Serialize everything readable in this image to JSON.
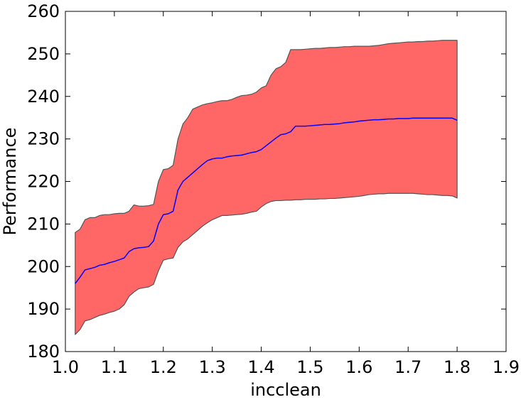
{
  "chart_data": {
    "type": "area",
    "xlabel": "incclean",
    "ylabel": "Performance",
    "xlim": [
      1.0,
      1.9
    ],
    "ylim": [
      180,
      260
    ],
    "x_ticks": [
      1.0,
      1.1,
      1.2,
      1.3,
      1.4,
      1.5,
      1.6,
      1.7,
      1.8,
      1.9
    ],
    "x_tick_labels": [
      "1.0",
      "1.1",
      "1.2",
      "1.3",
      "1.4",
      "1.5",
      "1.6",
      "1.7",
      "1.8",
      "1.9"
    ],
    "y_ticks": [
      180,
      190,
      200,
      210,
      220,
      230,
      240,
      250,
      260
    ],
    "y_tick_labels": [
      "180",
      "190",
      "200",
      "210",
      "220",
      "230",
      "240",
      "250",
      "260"
    ],
    "grid": false,
    "colors": {
      "band_fill": "#ff6666",
      "band_edge": "#555555",
      "mean_line": "#0000ff",
      "axes": "#000000"
    },
    "x": [
      1.02,
      1.03,
      1.04,
      1.05,
      1.06,
      1.07,
      1.08,
      1.09,
      1.1,
      1.11,
      1.12,
      1.13,
      1.14,
      1.15,
      1.16,
      1.17,
      1.18,
      1.19,
      1.2,
      1.21,
      1.22,
      1.23,
      1.24,
      1.25,
      1.26,
      1.27,
      1.28,
      1.29,
      1.3,
      1.31,
      1.32,
      1.33,
      1.34,
      1.35,
      1.36,
      1.37,
      1.38,
      1.39,
      1.4,
      1.41,
      1.42,
      1.43,
      1.44,
      1.45,
      1.46,
      1.47,
      1.48,
      1.49,
      1.5,
      1.51,
      1.52,
      1.53,
      1.54,
      1.55,
      1.56,
      1.57,
      1.58,
      1.59,
      1.6,
      1.61,
      1.62,
      1.63,
      1.64,
      1.65,
      1.66,
      1.67,
      1.68,
      1.69,
      1.7,
      1.71,
      1.72,
      1.73,
      1.74,
      1.75,
      1.76,
      1.77,
      1.78,
      1.79,
      1.8
    ],
    "series": [
      {
        "role": "mean",
        "values": [
          196.0,
          197.5,
          199.2,
          199.5,
          199.8,
          200.3,
          200.5,
          200.9,
          201.2,
          201.6,
          202.0,
          203.5,
          204.2,
          204.4,
          204.5,
          204.7,
          206.0,
          210.0,
          212.2,
          212.4,
          213.0,
          218.0,
          220.0,
          221.0,
          222.0,
          223.0,
          224.0,
          224.9,
          225.3,
          225.5,
          225.5,
          225.8,
          226.0,
          226.1,
          226.2,
          226.5,
          226.8,
          227.0,
          227.5,
          228.4,
          229.3,
          230.2,
          231.0,
          231.2,
          231.7,
          233.0,
          233.0,
          233.0,
          233.1,
          233.2,
          233.3,
          233.4,
          233.4,
          233.5,
          233.6,
          233.8,
          233.9,
          234.0,
          234.2,
          234.3,
          234.4,
          234.5,
          234.5,
          234.6,
          234.7,
          234.7,
          234.8,
          234.8,
          234.8,
          234.9,
          234.9,
          234.9,
          234.9,
          234.9,
          234.9,
          234.9,
          234.9,
          234.9,
          234.4
        ]
      },
      {
        "role": "upper",
        "values": [
          208.0,
          208.8,
          211.0,
          211.5,
          211.5,
          212.0,
          212.2,
          212.2,
          212.4,
          212.5,
          212.5,
          213.0,
          214.5,
          214.2,
          214.2,
          214.3,
          214.6,
          220.0,
          222.8,
          223.0,
          223.8,
          230.0,
          233.5,
          235.0,
          237.0,
          237.5,
          238.0,
          238.3,
          238.5,
          238.8,
          239.0,
          239.0,
          239.3,
          239.8,
          240.2,
          240.3,
          240.5,
          241.0,
          242.0,
          242.5,
          245.0,
          246.5,
          247.0,
          248.0,
          251.0,
          251.0,
          251.0,
          251.1,
          251.2,
          251.3,
          251.3,
          251.4,
          251.5,
          251.5,
          251.6,
          251.7,
          251.7,
          251.8,
          251.8,
          251.8,
          251.8,
          251.9,
          252.0,
          252.2,
          252.4,
          252.5,
          252.6,
          252.7,
          252.8,
          252.8,
          252.9,
          252.9,
          253.0,
          253.0,
          253.1,
          253.2,
          253.2,
          253.2,
          253.2
        ]
      },
      {
        "role": "lower",
        "values": [
          184.0,
          185.2,
          187.2,
          187.5,
          188.0,
          188.5,
          188.8,
          189.2,
          189.5,
          190.0,
          191.0,
          193.0,
          194.0,
          194.8,
          195.0,
          195.2,
          195.8,
          199.0,
          201.5,
          201.8,
          202.0,
          204.5,
          205.8,
          206.5,
          207.5,
          208.5,
          209.5,
          210.3,
          211.0,
          211.5,
          212.0,
          212.0,
          212.1,
          212.2,
          212.3,
          212.5,
          212.8,
          213.0,
          214.0,
          214.8,
          215.3,
          215.5,
          215.5,
          215.6,
          215.6,
          215.7,
          215.7,
          215.8,
          215.8,
          215.8,
          215.9,
          215.9,
          216.0,
          216.0,
          216.1,
          216.2,
          216.3,
          216.4,
          216.5,
          216.7,
          216.9,
          217.0,
          217.1,
          217.1,
          217.2,
          217.2,
          217.2,
          217.2,
          217.2,
          217.2,
          217.1,
          217.0,
          216.9,
          216.9,
          216.8,
          216.7,
          216.7,
          216.6,
          216.1
        ]
      }
    ]
  }
}
